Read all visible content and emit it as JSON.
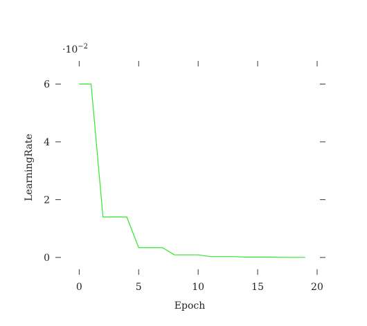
{
  "chart_data": {
    "type": "line",
    "title": "",
    "xlabel": "Epoch",
    "ylabel": "LearningRate",
    "y_multiplier": {
      "base": "·10",
      "exponent": "−2"
    },
    "xlim": [
      -2,
      20.7
    ],
    "ylim": [
      -0.6,
      6.8
    ],
    "x_ticks": [
      0,
      5,
      10,
      15,
      20
    ],
    "y_ticks": [
      0,
      2,
      4,
      6
    ],
    "grid": false,
    "series": [
      {
        "color": "#2ee82e",
        "x": [
          0,
          1,
          2,
          3,
          4,
          5,
          6,
          7,
          8,
          9,
          10,
          11,
          12,
          13,
          14,
          15,
          16,
          17,
          18,
          19
        ],
        "y": [
          6,
          6,
          1.4,
          1.4,
          1.4,
          0.34,
          0.34,
          0.34,
          0.09,
          0.09,
          0.09,
          0.03,
          0.03,
          0.03,
          0.01,
          0.01,
          0.01,
          0.003,
          0.003,
          0.003
        ]
      }
    ]
  }
}
